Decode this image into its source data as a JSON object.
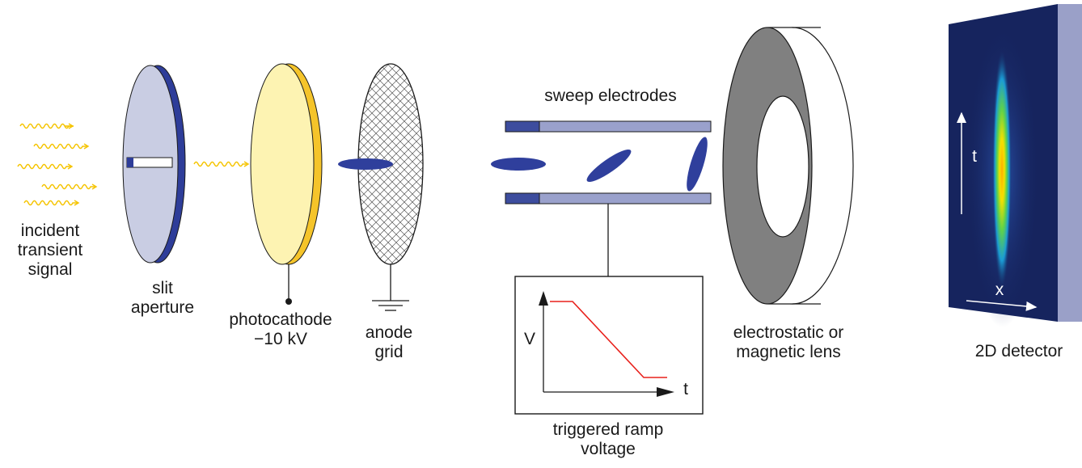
{
  "labels": {
    "incident": [
      "incident",
      "transient",
      "signal"
    ],
    "slit": [
      "slit",
      "aperture"
    ],
    "photocathode": [
      "photocathode",
      "−10 kV"
    ],
    "anode": [
      "anode",
      "grid"
    ],
    "sweep": "sweep electrodes",
    "ramp": [
      "triggered ramp",
      "voltage"
    ],
    "lens": [
      "electrostatic or",
      "magnetic lens"
    ],
    "detector": "2D detector"
  },
  "inset": {
    "y_label": "V",
    "x_label": "t"
  },
  "detector_axes": {
    "t": "t",
    "x": "x"
  },
  "colors": {
    "wave": "#f5c400",
    "slit_face": "#c9cde3",
    "slit_edge": "#2e3d99",
    "photocathode_face": "#fdf3b2",
    "photocathode_edge": "#f5c42a",
    "electron": "#2f3f9c",
    "electrode": "#9aa1cc",
    "electrode_dark": "#3d4d9e",
    "ramp_line": "#e8201b",
    "lens_face": "#808080",
    "detector_bg": "#16245e",
    "detector_side": "#9aa0c8"
  }
}
